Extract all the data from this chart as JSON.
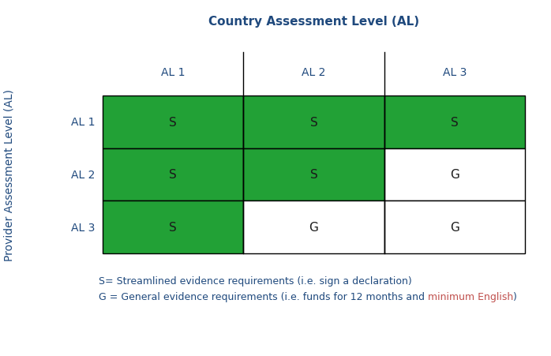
{
  "title": "Country Assessment Level (AL)",
  "title_color": "#1F497D",
  "col_labels": [
    "AL 1",
    "AL 2",
    "AL 3"
  ],
  "row_labels": [
    "AL 1",
    "AL 2",
    "AL 3"
  ],
  "ylabel": "Provider Assessment Level (AL)",
  "ylabel_color": "#1F497D",
  "col_header_color": "#1F497D",
  "row_header_color": "#1F497D",
  "cell_data": [
    [
      "S",
      "S",
      "S"
    ],
    [
      "S",
      "S",
      "G"
    ],
    [
      "S",
      "G",
      "G"
    ]
  ],
  "green_color": "#22A136",
  "white_color": "#FFFFFF",
  "cell_colors": [
    [
      "green",
      "green",
      "green"
    ],
    [
      "green",
      "green",
      "white"
    ],
    [
      "green",
      "white",
      "white"
    ]
  ],
  "legend_line1": "S= Streamlined evidence requirements (i.e. sign a declaration)",
  "legend_line2_part1": "G = General evidence requirements (i.e. funds for 12 months and ",
  "legend_line2_highlight": "minimum English",
  "legend_line2_part2": ")",
  "legend_color": "#1F497D",
  "legend_highlight_color": "#C0504D",
  "legend_fontsize": 9,
  "cell_fontsize": 11,
  "header_fontsize": 10,
  "title_fontsize": 11,
  "cell_text_color_green": "#1a1a1a",
  "cell_text_color_white": "#1a1a1a"
}
